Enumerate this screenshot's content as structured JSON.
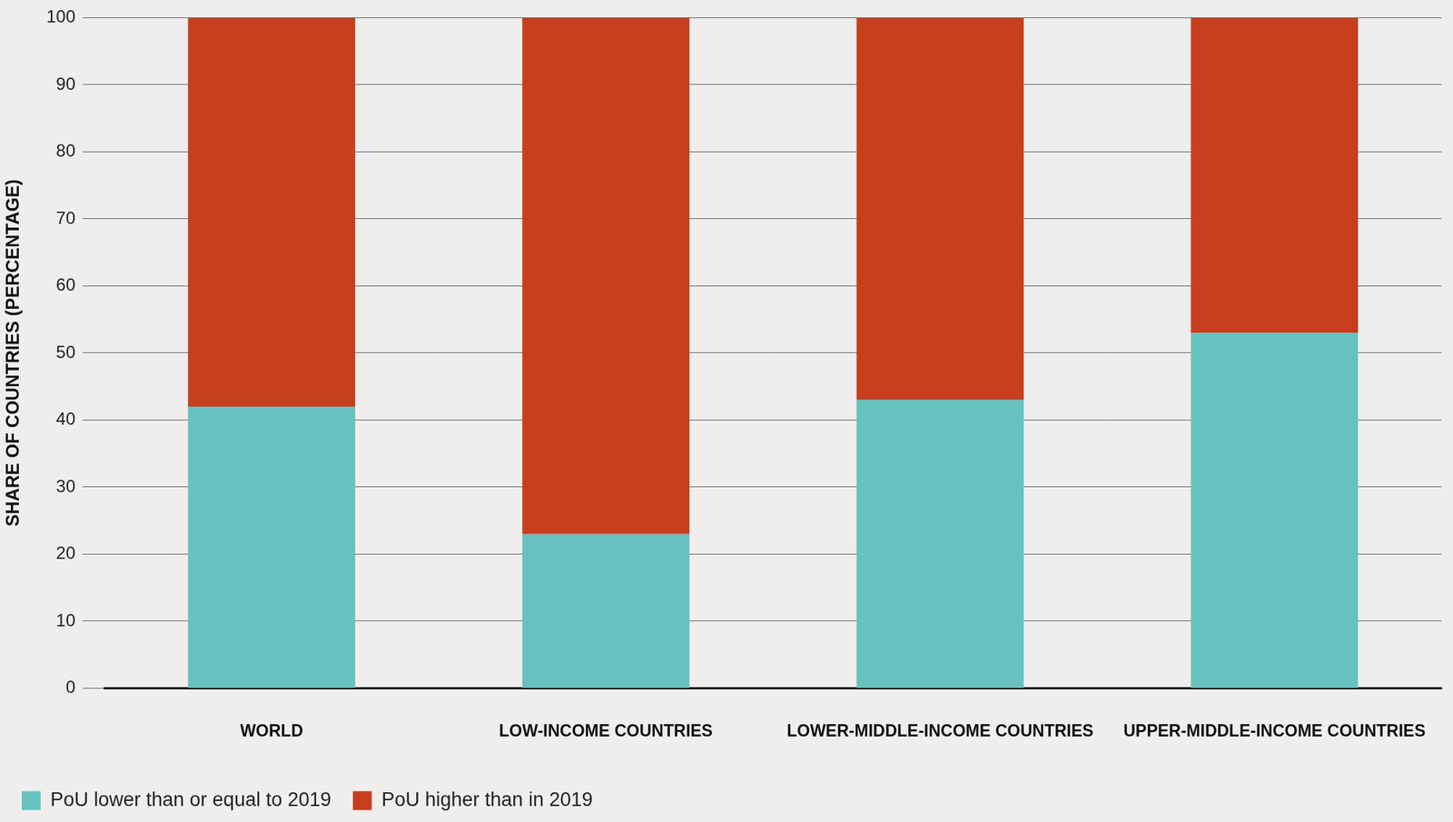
{
  "chart_data": {
    "type": "bar",
    "stacked": true,
    "y_label": "SHARE OF COUNTRIES (PERCENTAGE)",
    "categories": [
      "WORLD",
      "LOW-INCOME COUNTRIES",
      "LOWER-MIDDLE-INCOME COUNTRIES",
      "UPPER-MIDDLE-INCOME COUNTRIES"
    ],
    "series": [
      {
        "name": "PoU lower than or equal to 2019",
        "color": "#67c2bf",
        "values": [
          42,
          23,
          43,
          53
        ]
      },
      {
        "name": "PoU higher than in 2019",
        "color": "#c73e1d",
        "values": [
          58,
          77,
          57,
          47
        ]
      }
    ],
    "ylim": [
      0,
      100
    ],
    "yticks": [
      0,
      10,
      20,
      30,
      40,
      50,
      60,
      70,
      80,
      90,
      100
    ],
    "grid": true,
    "legend": "bottom-left"
  }
}
